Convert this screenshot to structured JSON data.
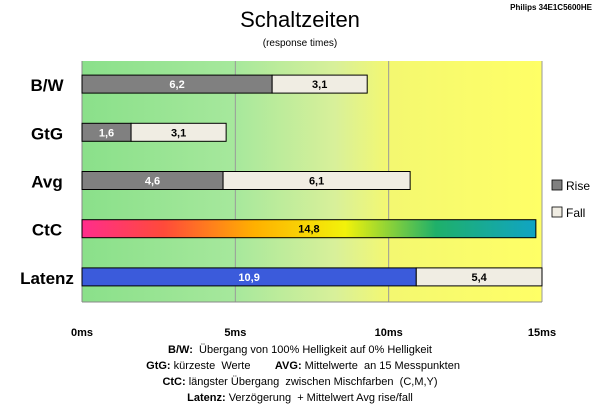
{
  "chart_data": {
    "type": "bar",
    "orientation": "horizontal",
    "stacked": true,
    "title": "Schaltzeiten",
    "subtitle": "(response times)",
    "source_label": "Philips 34E1C5600HE",
    "categories": [
      "B/W",
      "GtG",
      "Avg",
      "CtC",
      "Latenz"
    ],
    "series": [
      {
        "name": "Rise",
        "values": [
          6.2,
          1.6,
          4.6,
          14.8,
          10.9
        ],
        "color": "#808080"
      },
      {
        "name": "Fall",
        "values": [
          3.1,
          3.1,
          6.1,
          null,
          5.4
        ],
        "color": "#f0ede3"
      }
    ],
    "value_labels": {
      "rise": [
        "6,2",
        "1,6",
        "4,6",
        "14,8",
        "10,9"
      ],
      "fall": [
        "3,1",
        "3,1",
        "6,1",
        "",
        "5,4"
      ]
    },
    "special_fills": {
      "CtC": "rainbow",
      "Latenz": "#3b5bdb"
    },
    "xlim": [
      0,
      15
    ],
    "xticks": [
      {
        "value": 0,
        "label": "0ms"
      },
      {
        "value": 5,
        "label": "5ms"
      },
      {
        "value": 10,
        "label": "10ms"
      },
      {
        "value": 15,
        "label": "15ms"
      }
    ],
    "background_zones": [
      {
        "from": 0,
        "to": 5,
        "color": "#8ee08e"
      },
      {
        "from": 5,
        "to": 10,
        "color": "#c2ecaa"
      },
      {
        "from": 10,
        "to": 15,
        "color": "#ffff66"
      }
    ],
    "legend": {
      "position": "right",
      "entries": [
        "Rise",
        "Fall"
      ]
    },
    "grid": true,
    "notes": [
      {
        "bold": "B/W:",
        "text": "  Übergang von 100% Helligkeit auf 0% Helligkeit"
      },
      {
        "bold": "GtG:",
        "text": " kürzeste  Werte        ",
        "bold2": "AVG:",
        "text2": " Mittelwerte  an 15 Messpunkten"
      },
      {
        "bold": "CtC:",
        "text": " längster Übergang  zwischen Mischfarben  (C,M,Y)"
      },
      {
        "bold": "Latenz:",
        "text": " Verzögerung  + Mittelwert Avg rise/fall"
      }
    ]
  }
}
